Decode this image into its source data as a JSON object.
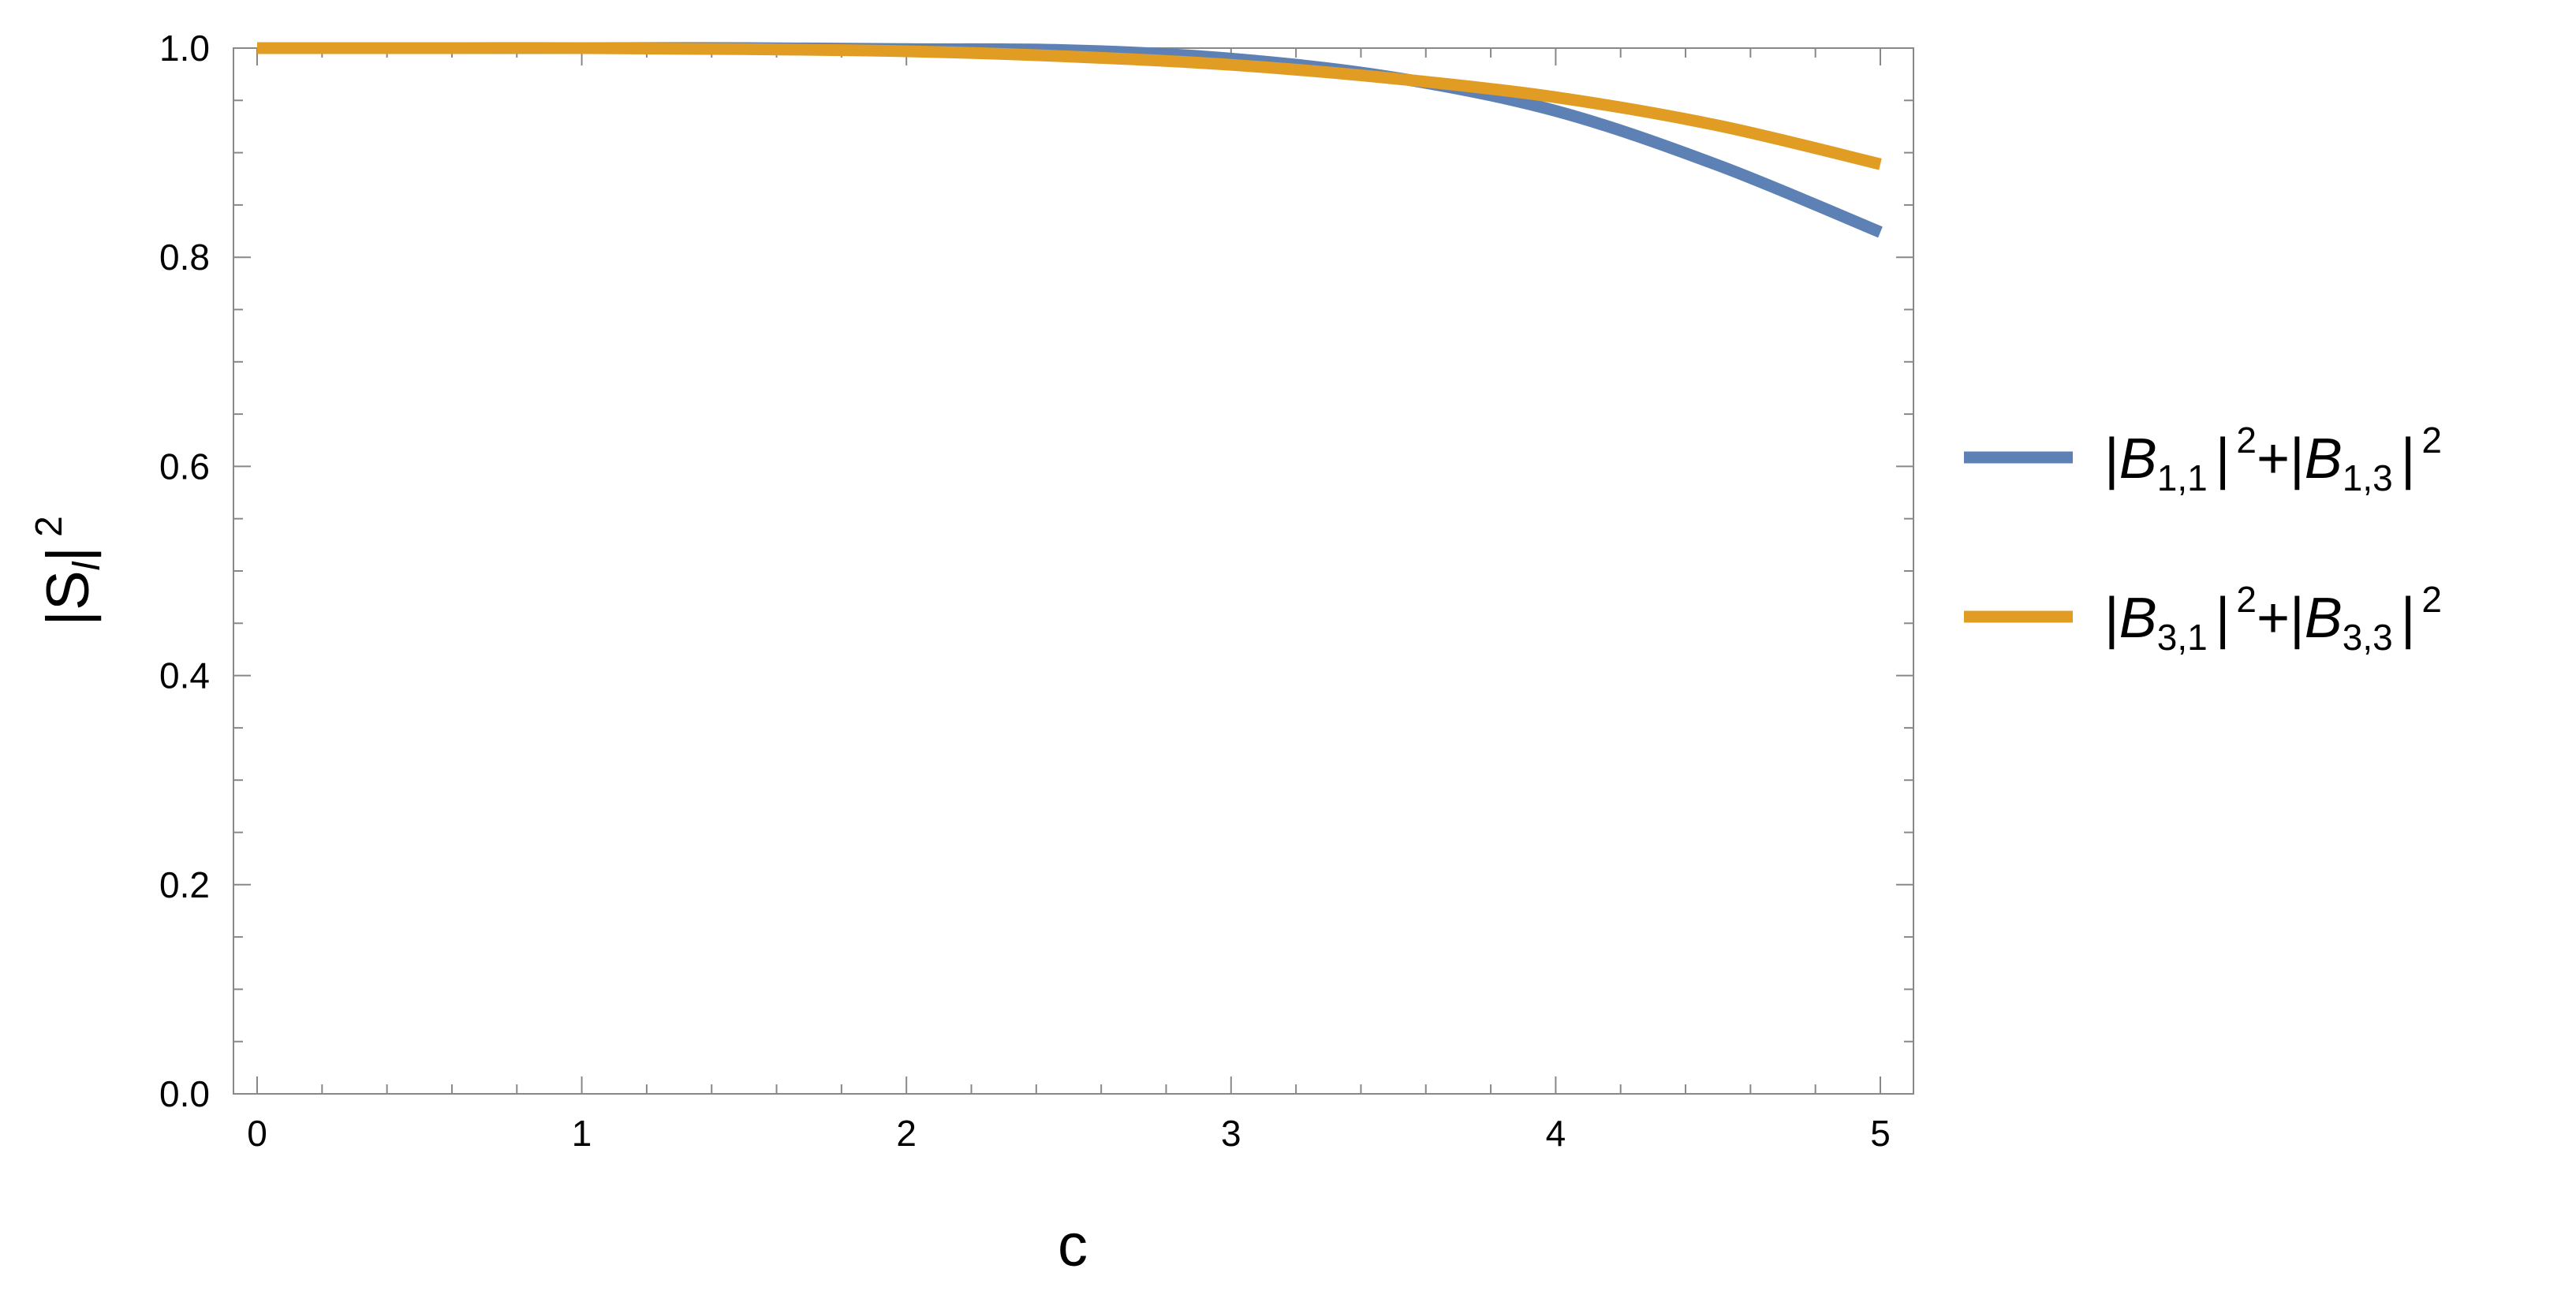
{
  "chart_data": {
    "type": "line",
    "xlabel": "c",
    "ylabel": "|S",
    "ylabel_sub": "l",
    "ylabel_sup": "2",
    "xlim": [
      0,
      5
    ],
    "ylim": [
      0,
      1
    ],
    "x_ticks": [
      0,
      1,
      2,
      3,
      4,
      5
    ],
    "x_tick_labels": [
      "0",
      "1",
      "2",
      "3",
      "4",
      "5"
    ],
    "y_ticks": [
      0,
      0.2,
      0.4,
      0.6,
      0.8,
      1.0
    ],
    "y_tick_labels": [
      "0.0",
      "0.2",
      "0.4",
      "0.6",
      "0.8",
      "1.0"
    ],
    "grid": false,
    "legend_position": "right",
    "series": [
      {
        "color": "#5e81b5",
        "legend": {
          "first_sub": "1,1",
          "second_sub": "1,3",
          "sup": "2"
        },
        "x": [
          0,
          0.5,
          1,
          1.5,
          2,
          2.5,
          3,
          3.5,
          4,
          4.5,
          5
        ],
        "y": [
          1.0,
          1.0,
          1.0,
          1.0,
          0.999,
          0.998,
          0.99,
          0.972,
          0.94,
          0.888,
          0.824
        ]
      },
      {
        "color": "#e19c24",
        "legend": {
          "first_sub": "3,1",
          "second_sub": "3,3",
          "sup": "2"
        },
        "x": [
          0,
          0.5,
          1,
          1.5,
          2,
          2.5,
          3,
          3.5,
          4,
          4.5,
          5
        ],
        "y": [
          1.0,
          1.0,
          1.0,
          0.999,
          0.997,
          0.992,
          0.984,
          0.971,
          0.953,
          0.926,
          0.889
        ]
      }
    ]
  }
}
